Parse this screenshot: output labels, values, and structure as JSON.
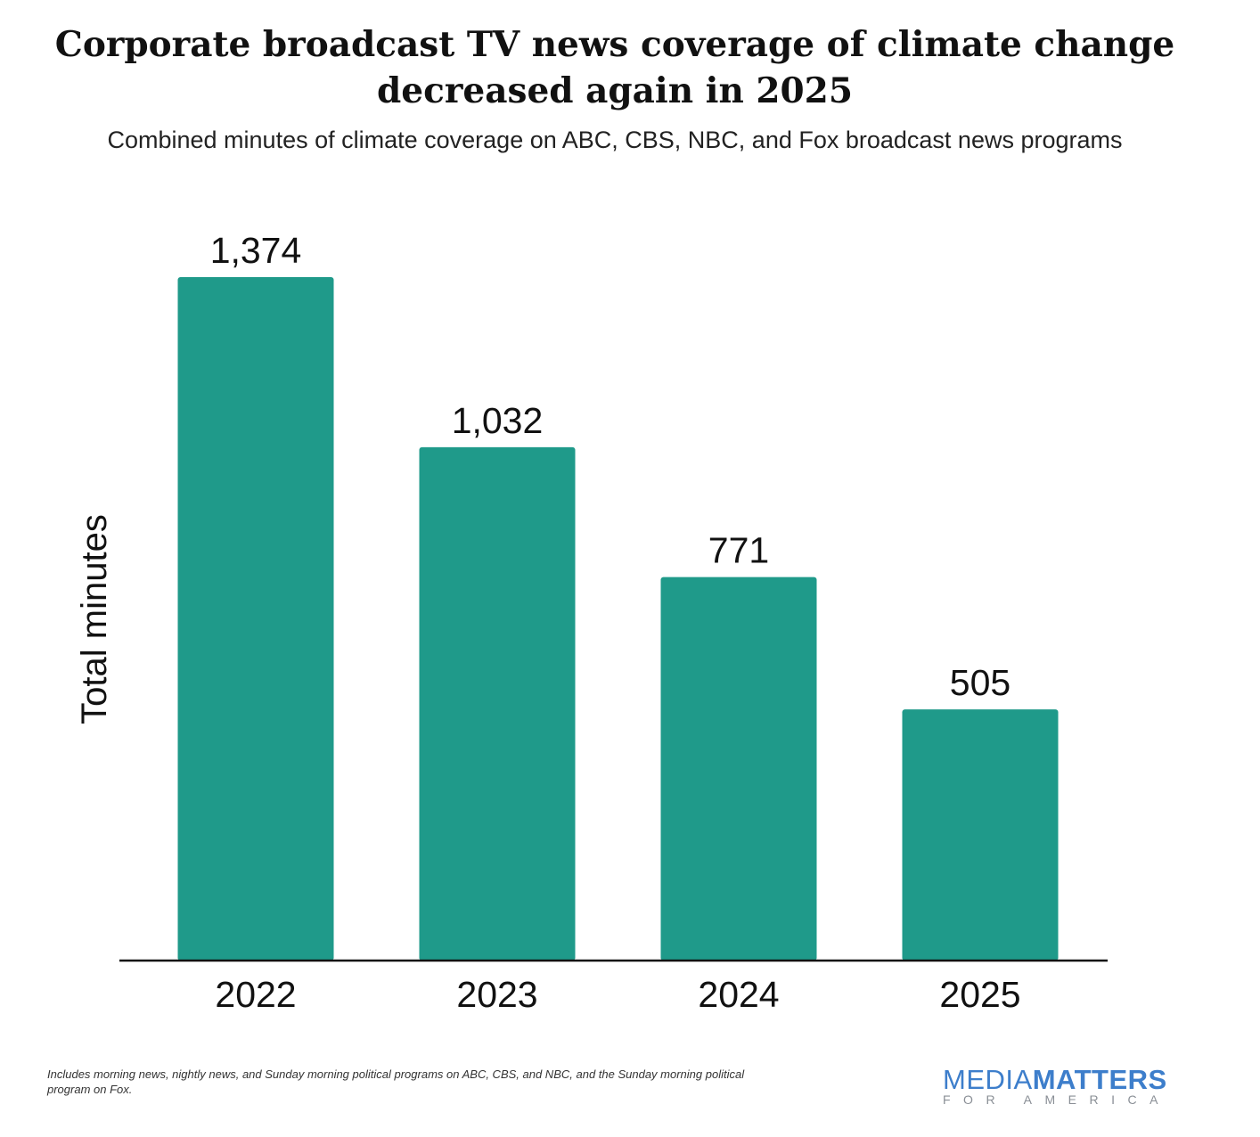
{
  "header": {
    "title_line1": "Corporate broadcast TV news coverage of climate change",
    "title_line2": "decreased again in 2025",
    "subtitle": "Combined minutes of climate coverage on ABC, CBS, NBC, and Fox broadcast news programs"
  },
  "chart_data": {
    "type": "bar",
    "title": "Corporate broadcast TV news coverage of climate change decreased again in 2025",
    "subtitle": "Combined minutes of climate coverage on ABC, CBS, NBC, and Fox broadcast news programs",
    "xlabel": "",
    "ylabel": "Total minutes",
    "categories": [
      "2022",
      "2023",
      "2024",
      "2025"
    ],
    "values": [
      1374,
      1032,
      771,
      505
    ],
    "value_labels": [
      "1,374",
      "1,032",
      "771",
      "505"
    ],
    "ylim": [
      0,
      1374
    ],
    "grid": false,
    "legend": "none",
    "bar_color": "#1f9a8a"
  },
  "footer": {
    "note_line1": "Includes morning news, nightly news, and Sunday morning political programs on ABC, CBS, and NBC, and the Sunday morning political",
    "note_line2": "program on Fox.",
    "logo_media": "MEDIA",
    "logo_matters": "MATTERS",
    "logo_sub": "FOR AMERICA"
  }
}
